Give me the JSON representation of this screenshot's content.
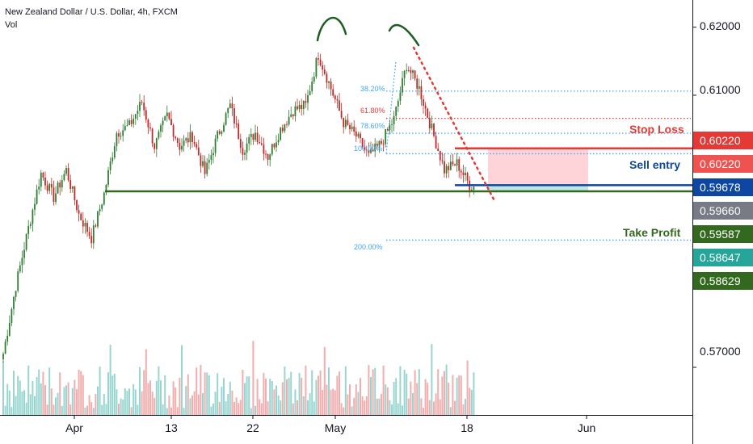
{
  "header": {
    "symbol": "New Zealand Dollar / U.S. Dollar, 4h, FXCM",
    "volume_label": "Vol"
  },
  "annotations": {
    "stop_loss": "Stop Loss",
    "sell_entry": "Sell entry",
    "take_profit": "Take Profit"
  },
  "fib_levels": [
    "38.20%",
    "61.80%",
    "78.60%",
    "100.00%",
    "200.00%"
  ],
  "price_axis": {
    "ticks": [
      "0.62000",
      "0.61000",
      "0.57000"
    ],
    "badges": [
      "0.60220",
      "0.60220",
      "0.59678",
      "0.59660",
      "0.59587",
      "0.58647",
      "0.58629"
    ]
  },
  "time_axis": [
    "Apr",
    "13",
    "22",
    "May",
    "18",
    "Jun"
  ],
  "colors": {
    "stop_loss": "#e53935",
    "sell_entry": "#0d47a1",
    "take_profit": "#33691e",
    "up_candle": "#2e7d32",
    "down_candle": "#c62828",
    "vol_up": "#80cbc4",
    "vol_down": "#ef9a9a",
    "badge_stop": "#e53935",
    "badge_stop2": "#ef5350",
    "badge_entry": "#0d47a1",
    "badge_last": "#787b86",
    "badge_tp": "#33691e",
    "badge_teal": "#26a69a",
    "badge_tp2": "#33691e",
    "risk_zone": "#ffcdd2",
    "reward_zone": "#b2dfdb",
    "fib_blue": "#42a5f5",
    "fib_red": "#e53935",
    "trend_dots": "#e53935",
    "sketch": "#1b5e20"
  },
  "chart_data": {
    "type": "candlestick",
    "title": "New Zealand Dollar / U.S. Dollar, 4h, FXCM",
    "y_range": [
      0.563,
      0.624
    ],
    "levels": {
      "stop_loss": 0.6022,
      "sell_entry": 0.59678,
      "last": 0.5966,
      "take_profit": 0.59587,
      "fib_38_2": 0.6106,
      "fib_61_8": 0.6066,
      "fib_78_6": 0.6044,
      "fib_100": 0.6014,
      "fib_200": 0.5887
    },
    "path_key_points": [
      [
        0,
        0.572
      ],
      [
        6,
        0.582
      ],
      [
        12,
        0.5905
      ],
      [
        18,
        0.5985
      ],
      [
        24,
        0.595
      ],
      [
        30,
        0.599
      ],
      [
        36,
        0.5925
      ],
      [
        42,
        0.589
      ],
      [
        48,
        0.5955
      ],
      [
        54,
        0.6045
      ],
      [
        60,
        0.6055
      ],
      [
        66,
        0.609
      ],
      [
        72,
        0.6025
      ],
      [
        78,
        0.607
      ],
      [
        84,
        0.6025
      ],
      [
        90,
        0.604
      ],
      [
        96,
        0.5985
      ],
      [
        102,
        0.604
      ],
      [
        108,
        0.6085
      ],
      [
        114,
        0.602
      ],
      [
        120,
        0.6045
      ],
      [
        126,
        0.601
      ],
      [
        132,
        0.605
      ],
      [
        138,
        0.6078
      ],
      [
        144,
        0.6085
      ],
      [
        150,
        0.616
      ],
      [
        156,
        0.611
      ],
      [
        162,
        0.606
      ],
      [
        168,
        0.604
      ],
      [
        174,
        0.601
      ],
      [
        180,
        0.603
      ],
      [
        186,
        0.6065
      ],
      [
        192,
        0.6145
      ],
      [
        198,
        0.611
      ],
      [
        204,
        0.605
      ],
      [
        210,
        0.599
      ],
      [
        216,
        0.6
      ],
      [
        222,
        0.5968
      ],
      [
        224,
        0.5966
      ]
    ]
  }
}
